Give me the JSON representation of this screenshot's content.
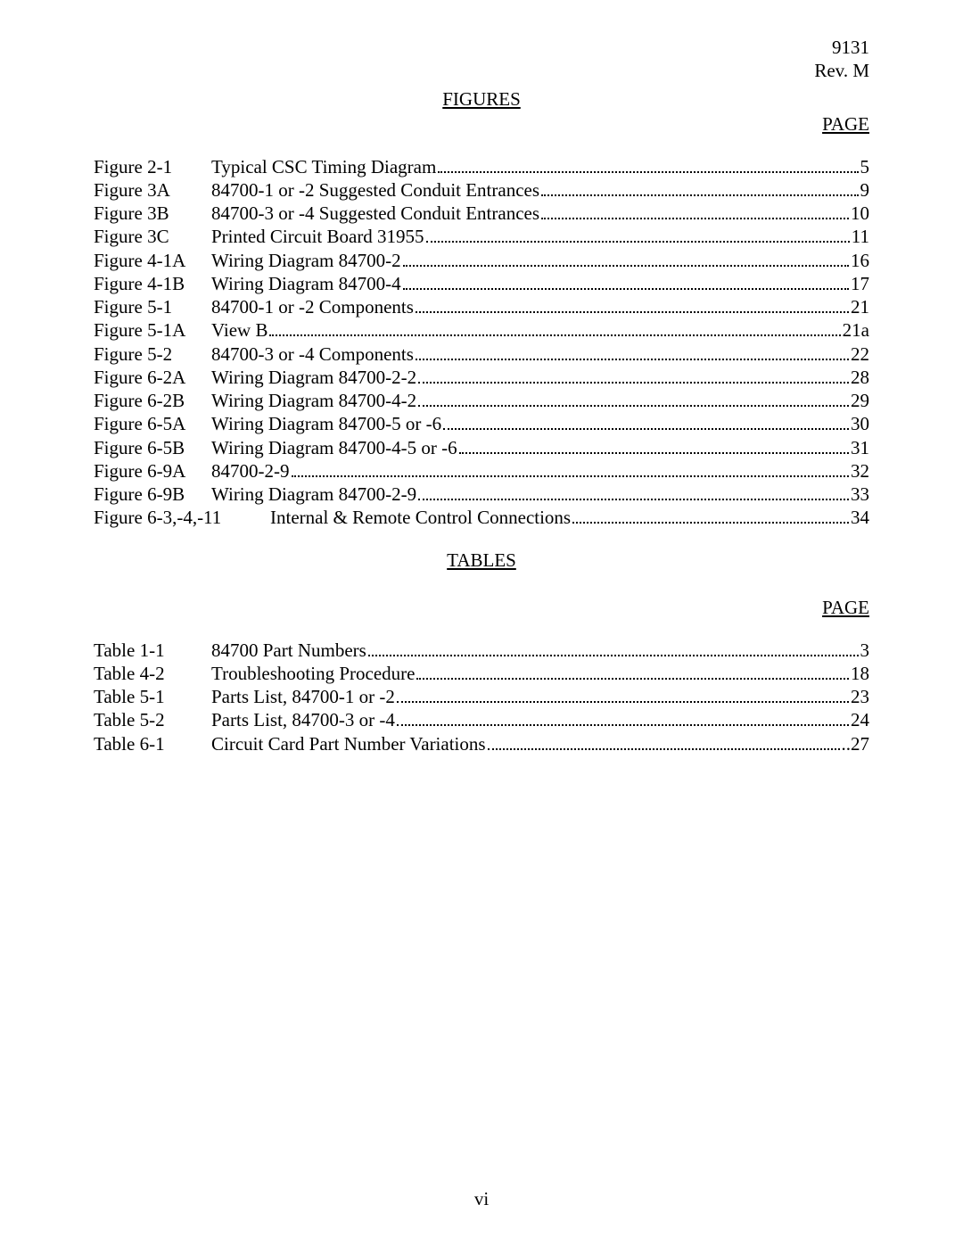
{
  "header": {
    "docnum": "9131",
    "revision": "Rev. M"
  },
  "sections": [
    {
      "heading": "FIGURES",
      "page_label": "PAGE",
      "page_label_gap": false,
      "entries": [
        {
          "ref": "Figure 2-1",
          "title": "Typical CSC Timing Diagram",
          "page": "5",
          "wide": false
        },
        {
          "ref": "Figure 3A",
          "title": "84700-1 or -2 Suggested Conduit Entrances",
          "page": "9",
          "wide": false
        },
        {
          "ref": "Figure 3B",
          "title": "84700-3 or -4 Suggested Conduit Entrances",
          "page": "10",
          "wide": false
        },
        {
          "ref": "Figure 3C",
          "title": "Printed Circuit Board 31955",
          "page": "11",
          "wide": false
        },
        {
          "ref": "Figure 4-1A",
          "title": "Wiring Diagram 84700-2",
          "page": "16",
          "wide": false
        },
        {
          "ref": "Figure 4-1B",
          "title": "Wiring Diagram 84700-4",
          "page": "17",
          "wide": false
        },
        {
          "ref": "Figure 5-1",
          "title": "84700-1 or -2 Components",
          "page": "21",
          "wide": false
        },
        {
          "ref": "Figure 5-1A",
          "title": "View B",
          "page": "21a",
          "wide": false
        },
        {
          "ref": "Figure 5-2",
          "title": "84700-3 or -4 Components",
          "page": "22",
          "wide": false
        },
        {
          "ref": "Figure 6-2A",
          "title": "Wiring Diagram 84700-2-2",
          "page": "28",
          "wide": false
        },
        {
          "ref": "Figure 6-2B",
          "title": "Wiring Diagram 84700-4-2",
          "page": "29",
          "wide": false
        },
        {
          "ref": "Figure 6-5A",
          "title": "Wiring Diagram 84700-5 or -6",
          "page": "30",
          "wide": false
        },
        {
          "ref": "Figure 6-5B",
          "title": "Wiring Diagram 84700-4-5 or -6",
          "page": "31",
          "wide": false
        },
        {
          "ref": "Figure 6-9A",
          "title": "84700-2-9",
          "page": "32",
          "wide": false
        },
        {
          "ref": "Figure 6-9B",
          "title": "Wiring Diagram 84700-2-9",
          "page": "33",
          "wide": false
        },
        {
          "ref": "Figure 6-3,-4,-11",
          "title": "Internal & Remote Control Connections",
          "page": "34",
          "wide": true
        }
      ]
    },
    {
      "heading": "TABLES",
      "page_label": "PAGE",
      "page_label_gap": true,
      "entries": [
        {
          "ref": "Table 1-1",
          "title": "84700 Part Numbers",
          "page": "3",
          "wide": false
        },
        {
          "ref": "Table 4-2",
          "title": "Troubleshooting Procedure",
          "page": "18",
          "wide": false
        },
        {
          "ref": "Table 5-1",
          "title": "Parts List, 84700-1 or -2",
          "page": "23",
          "wide": false
        },
        {
          "ref": "Table 5-2",
          "title": "Parts List, 84700-3 or -4",
          "page": "24",
          "wide": false
        },
        {
          "ref": "Table 6-1",
          "title": "Circuit Card Part Number Variations",
          "page": " ..27",
          "wide": false
        }
      ]
    }
  ],
  "footer": {
    "pagenum": "vi"
  }
}
